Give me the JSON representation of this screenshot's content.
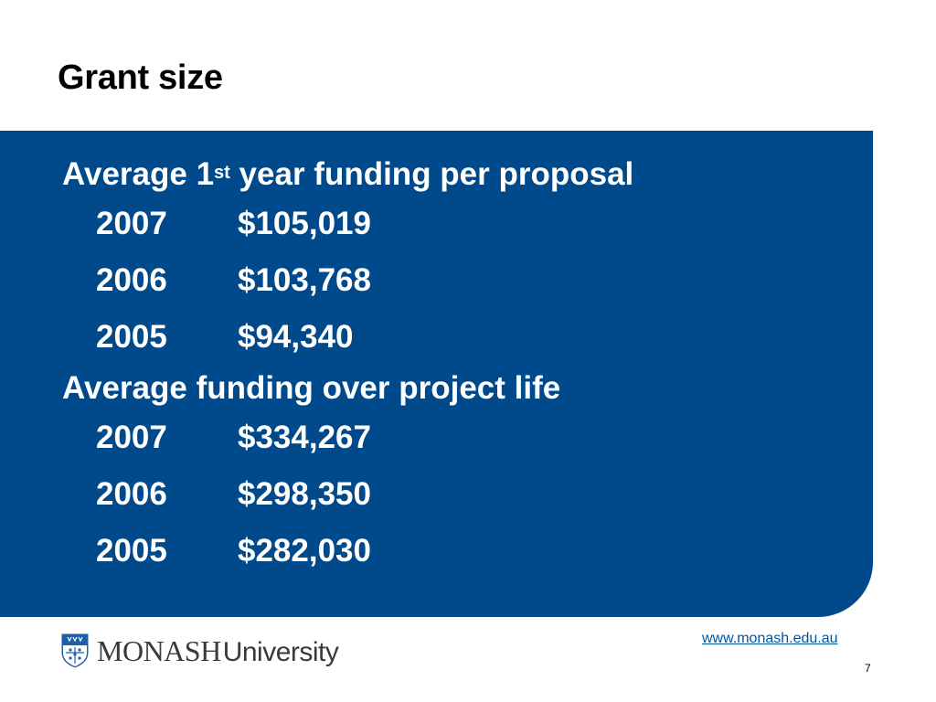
{
  "slide": {
    "title": "Grant size"
  },
  "sections": [
    {
      "heading_prefix": "Average 1",
      "heading_sup": "st",
      "heading_suffix": " year funding per proposal",
      "rows": [
        {
          "year": "2007",
          "amount": "$105,019"
        },
        {
          "year": "2006",
          "amount": "$103,768"
        },
        {
          "year": "2005",
          "amount": "$94,340"
        }
      ]
    },
    {
      "heading": "Average funding over project life",
      "rows": [
        {
          "year": "2007",
          "amount": "$334,267"
        },
        {
          "year": "2006",
          "amount": "$298,350"
        },
        {
          "year": "2005",
          "amount": "$282,030"
        }
      ]
    }
  ],
  "footer": {
    "logo_monash": "MONASH",
    "logo_university": "University",
    "url": "www.monash.edu.au",
    "page_number": "7"
  },
  "colors": {
    "panel": "#00498a",
    "link": "#0055a5"
  }
}
